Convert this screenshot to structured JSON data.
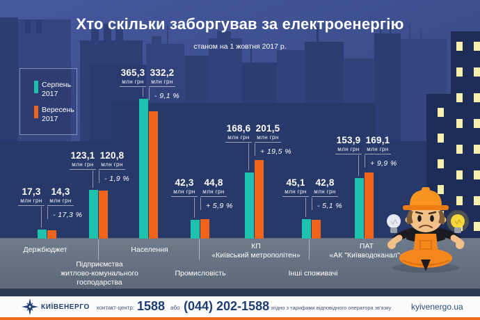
{
  "title": "Хто скільки заборгував за електроенергію",
  "subtitle": "станом на 1 жовтня 2017 р.",
  "colors": {
    "august_teal": "#1EC1AC",
    "september_orange": "#F2641C",
    "window_yellow": "#F6EFAD",
    "band_gray": "#66727F",
    "footer_navy": "#1E3D74",
    "footer_orange": "#EE6A1E"
  },
  "icons": {
    "brand_logo": "compass-star",
    "worker_character": "worker-with-hard-hat-holding-light-bulbs",
    "bulb_left": "light-bulb-off",
    "bulb_right": "light-bulb-on"
  },
  "chart_data": {
    "type": "bar",
    "unit_label": "млн грн",
    "grid": false,
    "legend_position": "top-left",
    "ylim": [
      0,
      400
    ],
    "categories": [
      "Держбюджет",
      "Підприємства\nжитлово-комунального\nгосподарства",
      "Населення",
      "Промисловість",
      "КП\n«Київський метрополітен»",
      "Інші споживачі",
      "ПАТ\n«АК \"Київводоканал\"»"
    ],
    "series": [
      {
        "name": "Серпень 2017",
        "color": "#1EC1AC",
        "values": [
          17.3,
          123.1,
          365.3,
          42.3,
          168.6,
          45.1,
          153.9
        ],
        "value_labels": [
          "17,3",
          "123,1",
          "365,3",
          "42,3",
          "168,6",
          "45,1",
          "153,9"
        ]
      },
      {
        "name": "Вересень 2017",
        "color": "#F2641C",
        "values": [
          14.3,
          120.8,
          332.2,
          44.8,
          201.5,
          42.8,
          169.1
        ],
        "value_labels": [
          "14,3",
          "120,8",
          "332,2",
          "44,8",
          "201,5",
          "42,8",
          "169,1"
        ]
      }
    ],
    "change_labels": [
      "- 17,3 %",
      "- 1,9 %",
      "- 9,1 %",
      "+ 5,9 %",
      "+ 19,5 %",
      "- 5,1 %",
      "+ 9,9 %"
    ]
  },
  "footer": {
    "brand": "КИЇВЕНЕРГО",
    "contact_label": "контакт-центр:",
    "phone_short": "1588",
    "or_label": "або",
    "phone_full": "(044) 202-1588",
    "disclaimer": "згідно з тарифами відповідного оператора зв'язку",
    "website": "kyivenergo.ua"
  }
}
